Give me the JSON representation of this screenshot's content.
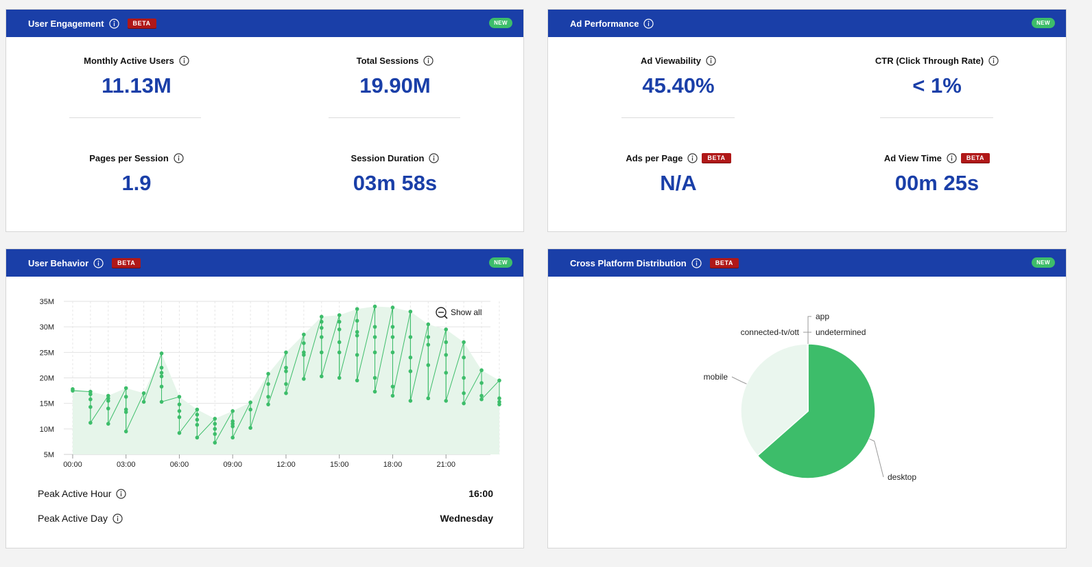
{
  "beta_label": "BETA",
  "new_label": "NEW",
  "engagement": {
    "title": "User Engagement",
    "metrics": [
      {
        "label": "Monthly Active Users",
        "value": "11.13M"
      },
      {
        "label": "Total Sessions",
        "value": "19.90M"
      },
      {
        "label": "Pages per Session",
        "value": "1.9"
      },
      {
        "label": "Session Duration",
        "value": "03m 58s"
      }
    ]
  },
  "ad": {
    "title": "Ad Performance",
    "metrics": [
      {
        "label": "Ad Viewability",
        "value": "45.40%"
      },
      {
        "label": "CTR (Click Through Rate)",
        "value": "< 1%"
      },
      {
        "label": "Ads per Page",
        "value": "N/A"
      },
      {
        "label": "Ad View Time",
        "value": "00m 25s"
      }
    ]
  },
  "behavior": {
    "title": "User Behavior",
    "show_all": "Show all",
    "peak_hour_label": "Peak Active Hour",
    "peak_hour_value": "16:00",
    "peak_day_label": "Peak Active Day",
    "peak_day_value": "Wednesday"
  },
  "cross": {
    "title": "Cross Platform Distribution"
  },
  "colors": {
    "header_blue": "#1a3fa8",
    "beta_red": "#b01818",
    "new_green": "#3dbd6a",
    "series_green": "#3dbd6a"
  },
  "chart_data": [
    {
      "type": "line",
      "x_unit": "hour of week",
      "yticks": [
        "5M",
        "10M",
        "15M",
        "20M",
        "25M",
        "30M",
        "35M"
      ],
      "ylim": [
        5,
        35
      ],
      "xticks": [
        "00:00",
        "03:00",
        "06:00",
        "09:00",
        "12:00",
        "15:00",
        "18:00",
        "21:00"
      ],
      "xlim": [
        -0.5,
        23.5
      ],
      "grid": true,
      "series": [
        {
          "points": [
            [
              0,
              17.8
            ],
            [
              0,
              17.5
            ],
            [
              1,
              17.3
            ],
            [
              1,
              16.8
            ],
            [
              1,
              15.8
            ],
            [
              1,
              14.3
            ],
            [
              1,
              11.2
            ],
            [
              2,
              16.5
            ],
            [
              2,
              16.0
            ],
            [
              2,
              15.5
            ],
            [
              2,
              14.0
            ],
            [
              2,
              11.0
            ],
            [
              3,
              18.0
            ],
            [
              3,
              16.3
            ],
            [
              3,
              13.8
            ],
            [
              3,
              13.3
            ],
            [
              3,
              9.5
            ],
            [
              4,
              17.0
            ],
            [
              4,
              15.3
            ],
            [
              5,
              24.8
            ],
            [
              5,
              22.0
            ],
            [
              5,
              21.0
            ],
            [
              5,
              20.3
            ],
            [
              5,
              18.3
            ],
            [
              5,
              15.3
            ],
            [
              6,
              16.3
            ],
            [
              6,
              14.8
            ],
            [
              6,
              13.5
            ],
            [
              6,
              12.3
            ],
            [
              6,
              9.2
            ],
            [
              7,
              13.8
            ],
            [
              7,
              12.8
            ],
            [
              7,
              11.8
            ],
            [
              7,
              10.8
            ],
            [
              7,
              8.3
            ],
            [
              8,
              12.0
            ],
            [
              8,
              11.0
            ],
            [
              8,
              10.0
            ],
            [
              8,
              9.0
            ],
            [
              8,
              7.3
            ],
            [
              9,
              13.5
            ],
            [
              9,
              11.5
            ],
            [
              9,
              11.0
            ],
            [
              9,
              10.5
            ],
            [
              9,
              8.3
            ],
            [
              10,
              15.2
            ],
            [
              10,
              13.8
            ],
            [
              10,
              10.2
            ],
            [
              11,
              20.8
            ],
            [
              11,
              18.8
            ],
            [
              11,
              16.3
            ],
            [
              11,
              14.8
            ],
            [
              12,
              25.0
            ],
            [
              12,
              22.0
            ],
            [
              12,
              21.3
            ],
            [
              12,
              18.8
            ],
            [
              12,
              17.0
            ],
            [
              13,
              28.5
            ],
            [
              13,
              26.8
            ],
            [
              13,
              25.0
            ],
            [
              13,
              24.5
            ],
            [
              13,
              19.8
            ],
            [
              14,
              32.0
            ],
            [
              14,
              31.0
            ],
            [
              14,
              29.8
            ],
            [
              14,
              28.0
            ],
            [
              14,
              25.0
            ],
            [
              14,
              20.3
            ],
            [
              15,
              32.3
            ],
            [
              15,
              31.0
            ],
            [
              15,
              29.5
            ],
            [
              15,
              27.0
            ],
            [
              15,
              25.0
            ],
            [
              15,
              20.0
            ],
            [
              16,
              33.5
            ],
            [
              16,
              31.2
            ],
            [
              16,
              29.0
            ],
            [
              16,
              28.3
            ],
            [
              16,
              24.5
            ],
            [
              16,
              19.5
            ],
            [
              17,
              34.0
            ],
            [
              17,
              30.0
            ],
            [
              17,
              28.0
            ],
            [
              17,
              25.0
            ],
            [
              17,
              20.0
            ],
            [
              17,
              17.3
            ],
            [
              18,
              33.8
            ],
            [
              18,
              30.0
            ],
            [
              18,
              28.0
            ],
            [
              18,
              25.0
            ],
            [
              18,
              18.3
            ],
            [
              18,
              16.5
            ],
            [
              19,
              33.0
            ],
            [
              19,
              28.0
            ],
            [
              19,
              24.0
            ],
            [
              19,
              21.3
            ],
            [
              19,
              15.5
            ],
            [
              20,
              30.5
            ],
            [
              20,
              28.0
            ],
            [
              20,
              26.5
            ],
            [
              20,
              22.5
            ],
            [
              20,
              16.0
            ],
            [
              21,
              29.5
            ],
            [
              21,
              27.0
            ],
            [
              21,
              24.5
            ],
            [
              21,
              21.0
            ],
            [
              21,
              15.5
            ],
            [
              22,
              27.0
            ],
            [
              22,
              24.0
            ],
            [
              22,
              20.0
            ],
            [
              22,
              17.0
            ],
            [
              22,
              15.0
            ],
            [
              23,
              21.5
            ],
            [
              23,
              19.0
            ],
            [
              23,
              16.5
            ],
            [
              23,
              15.8
            ],
            [
              24,
              19.5
            ],
            [
              24,
              16.0
            ],
            [
              24,
              15.3
            ],
            [
              24,
              14.8
            ]
          ]
        }
      ]
    },
    {
      "type": "pie",
      "slices": [
        {
          "label": "desktop",
          "value": 63.5,
          "color": "#3dbd6a"
        },
        {
          "label": "mobile",
          "value": 36.3,
          "color": "#eaf6ee"
        },
        {
          "label": "connected-tv/ott",
          "value": 0.08,
          "color": "#3dbd6a"
        },
        {
          "label": "undetermined",
          "value": 0.06,
          "color": "#3dbd6a"
        },
        {
          "label": "app",
          "value": 0.06,
          "color": "#3dbd6a"
        }
      ]
    }
  ]
}
